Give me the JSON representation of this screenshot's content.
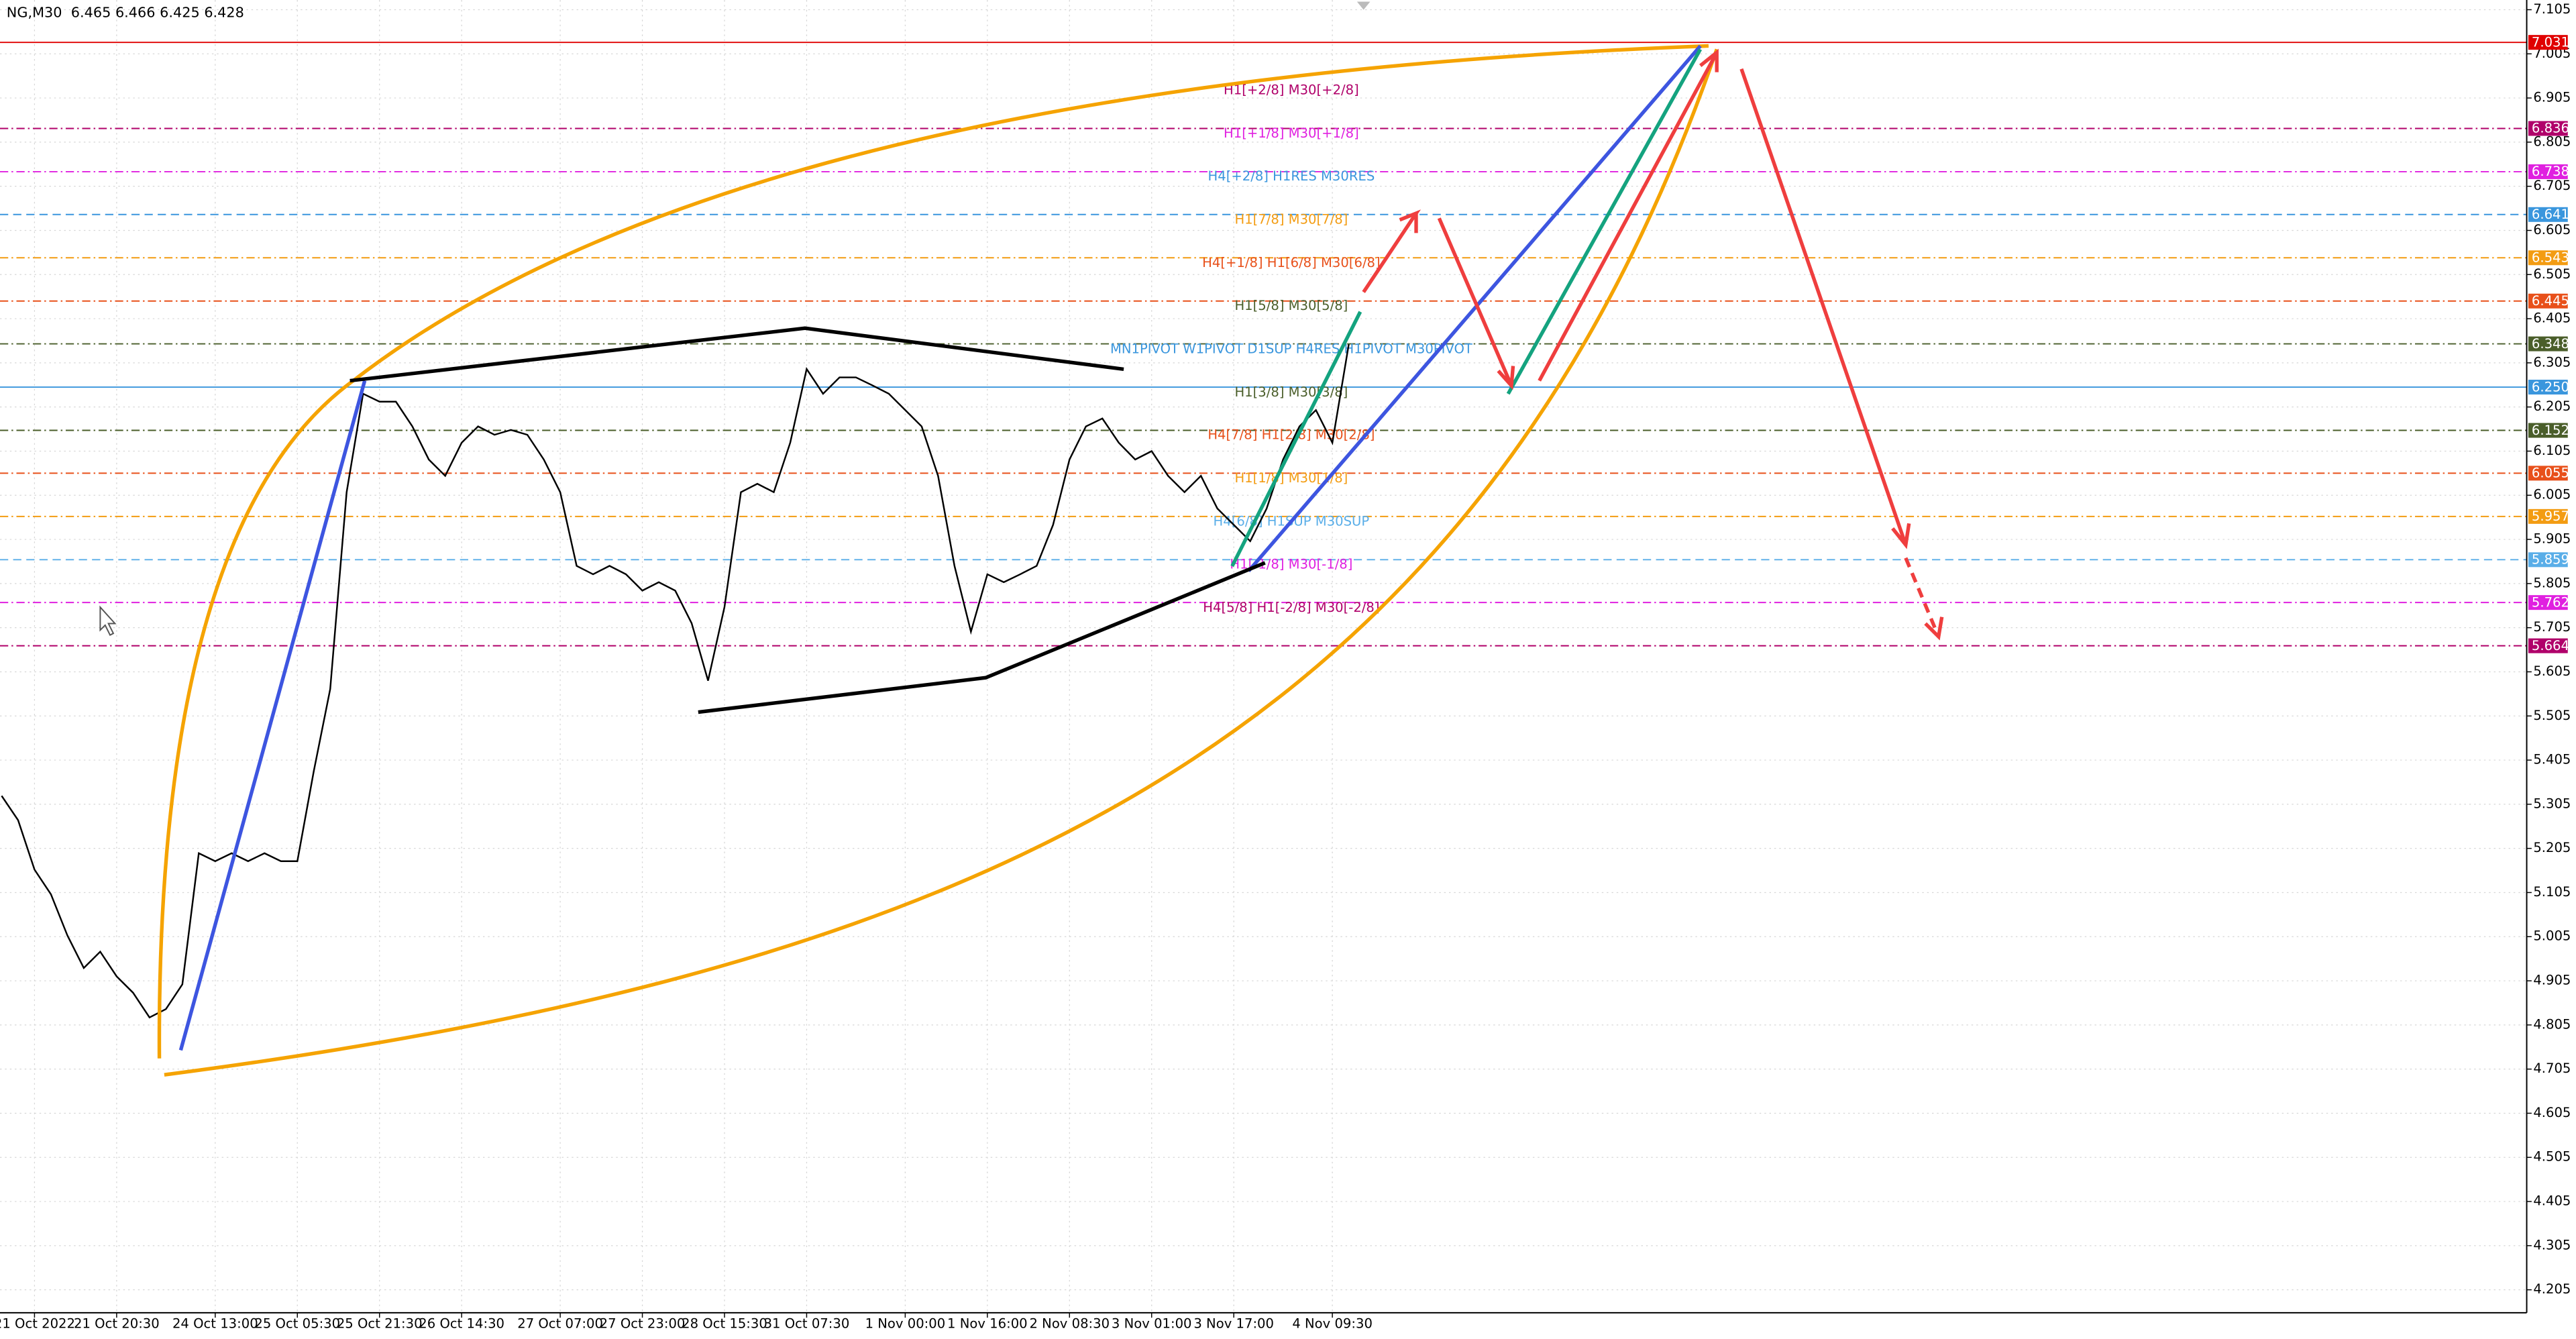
{
  "chart_data": {
    "type": "line",
    "title": "NG,M30  6.465 6.466 6.425 6.428",
    "categories": [
      null,
      null,
      "21 Oct 2022",
      null,
      null,
      null,
      null,
      "21 Oct 20:30",
      null,
      null,
      null,
      null,
      null,
      "24 Oct 13:00",
      null,
      null,
      null,
      null,
      "25 Oct 05:30",
      null,
      null,
      null,
      null,
      "25 Oct 21:30",
      null,
      null,
      null,
      null,
      "26 Oct 14:30",
      null,
      null,
      null,
      null,
      null,
      "27 Oct 07:00",
      null,
      null,
      null,
      null,
      "27 Oct 23:00",
      null,
      null,
      null,
      null,
      "28 Oct 15:30",
      null,
      null,
      null,
      null,
      "31 Oct 07:30",
      null,
      null,
      null,
      null,
      null,
      "1 Nov 00:00",
      null,
      null,
      null,
      null,
      "1 Nov 16:00",
      null,
      null,
      null,
      null,
      "2 Nov 08:30",
      null,
      null,
      null,
      null,
      "3 Nov 01:00",
      null,
      null,
      null,
      null,
      "3 Nov 17:00",
      null,
      null,
      null,
      null,
      null,
      "4 Nov 09:30",
      null
    ],
    "series": [
      {
        "color": "#000000",
        "values": [
          5.324,
          5.269,
          5.157,
          5.101,
          5.008,
          4.934,
          4.971,
          4.915,
          4.878,
          4.822,
          4.841,
          4.897,
          5.194,
          5.176,
          5.194,
          5.176,
          5.194,
          5.176,
          5.176,
          5.38,
          5.566,
          6.012,
          6.235,
          6.217,
          6.217,
          6.161,
          6.086,
          6.049,
          6.124,
          6.161,
          6.142,
          6.153,
          6.142,
          6.086,
          6.012,
          5.845,
          5.826,
          5.845,
          5.826,
          5.789,
          5.808,
          5.789,
          5.715,
          5.585,
          5.752,
          6.012,
          6.031,
          6.012,
          6.124,
          6.291,
          6.235,
          6.272,
          6.272,
          6.254,
          6.235,
          6.198,
          6.161,
          6.049,
          5.845,
          5.696,
          5.826,
          5.808,
          5.826,
          5.845,
          5.938,
          6.086,
          6.161,
          6.179,
          6.124,
          6.086,
          6.105,
          6.049,
          6.012,
          6.049,
          5.975,
          5.938,
          5.901,
          5.975,
          6.086,
          6.161,
          6.198,
          6.124,
          6.347
        ]
      }
    ],
    "ylim": [
      4.153,
      7.127
    ],
    "yticks": [
      4.205,
      4.305,
      4.405,
      4.505,
      4.605,
      4.705,
      4.805,
      4.905,
      5.005,
      5.105,
      5.205,
      5.305,
      5.405,
      5.505,
      5.605,
      5.705,
      5.805,
      5.905,
      6.005,
      6.105,
      6.205,
      6.305,
      6.405,
      6.505,
      6.605,
      6.705,
      6.805,
      6.905,
      7.005,
      7.105
    ],
    "grid": true,
    "levels": [
      {
        "value": 7.031,
        "label": "7.031",
        "color": "#e00000",
        "line_style": "solid"
      },
      {
        "value": 6.836,
        "label": "6.836",
        "color": "#b0006a",
        "line_style": "dashdot",
        "text": "H1[+2/8] M30[+2/8]"
      },
      {
        "value": 6.738,
        "label": "6.738",
        "color": "#e020e0",
        "line_style": "dashdot",
        "text": "H1[+1/8] M30[+1/8]"
      },
      {
        "value": 6.641,
        "label": "6.641",
        "color": "#3a96dd",
        "line_style": "dashed",
        "text": "H4[+2/8] H1RES M30RES"
      },
      {
        "value": 6.543,
        "label": "6.543",
        "color": "#f39c12",
        "line_style": "dashdot",
        "text": "H1[7/8] M30[7/8]"
      },
      {
        "value": 6.445,
        "label": "6.445",
        "color": "#e8501a",
        "line_style": "dashdot",
        "text": "H4[+1/8] H1[6/8] M30[6/8]"
      },
      {
        "value": 6.348,
        "label": "6.348",
        "color": "#4a5e2a",
        "line_style": "dashdot",
        "text": "H1[5/8] M30[5/8]"
      },
      {
        "value": 6.25,
        "label": "6.250",
        "color": "#3a96dd",
        "line_style": "solid",
        "text": "MN1PIVOT W1PIVOT D1SUP H4RES H1PIVOT M30PIVOT"
      },
      {
        "value": 6.152,
        "label": "6.152",
        "color": "#4a5e2a",
        "line_style": "dashdot",
        "text": "H1[3/8] M30[3/8]"
      },
      {
        "value": 6.055,
        "label": "6.055",
        "color": "#e8501a",
        "line_style": "dashdot",
        "text": "H4[7/8] H1[2/8] M30[2/8]"
      },
      {
        "value": 5.957,
        "label": "5.957",
        "color": "#f39c12",
        "line_style": "dashdot",
        "text": "H1[1/8] M30[1/8]"
      },
      {
        "value": 5.859,
        "label": "5.859",
        "color": "#5aaee8",
        "line_style": "dashed",
        "text": "H4[6/8] H1SUP M30SUP"
      },
      {
        "value": 5.762,
        "label": "5.762",
        "color": "#e020e0",
        "line_style": "dashdot",
        "text": "H1[-1/8] M30[-1/8]"
      },
      {
        "value": 5.664,
        "label": "5.664",
        "color": "#b0006a",
        "line_style": "dashdot",
        "text": "H4[5/8] H1[-2/8] M30[-2/8]"
      }
    ]
  }
}
